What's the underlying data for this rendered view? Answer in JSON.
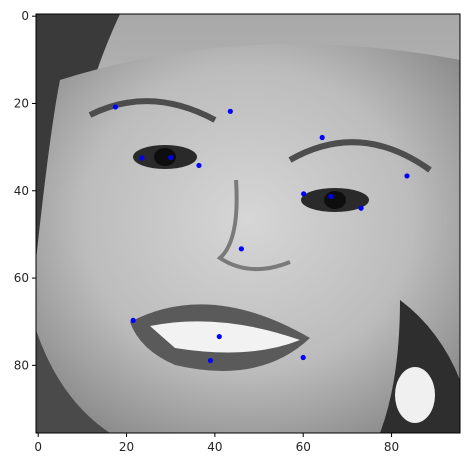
{
  "chart_data": {
    "type": "scatter",
    "background_image": "grayscale-face-photo",
    "xlim": [
      -0.5,
      95.5
    ],
    "ylim": [
      95.5,
      -0.5
    ],
    "y_inverted": true,
    "grid": false,
    "legend": "none",
    "x_ticks": [
      0,
      20,
      40,
      60,
      80
    ],
    "y_ticks": [
      0,
      20,
      40,
      60,
      80
    ],
    "title": "",
    "xlabel": "",
    "ylabel": "",
    "marker_color": "#0000ff",
    "series": [
      {
        "points": [
          {
            "x": 17.5,
            "y": 20.8
          },
          {
            "x": 43.5,
            "y": 21.8
          },
          {
            "x": 64.3,
            "y": 27.8
          },
          {
            "x": 23.5,
            "y": 32.5
          },
          {
            "x": 30.0,
            "y": 32.4
          },
          {
            "x": 36.4,
            "y": 34.2
          },
          {
            "x": 83.5,
            "y": 36.6
          },
          {
            "x": 60.1,
            "y": 40.7
          },
          {
            "x": 66.3,
            "y": 41.3
          },
          {
            "x": 73.1,
            "y": 44.0
          },
          {
            "x": 46.0,
            "y": 53.3
          },
          {
            "x": 21.5,
            "y": 69.7
          },
          {
            "x": 41.0,
            "y": 73.4
          },
          {
            "x": 60.0,
            "y": 78.2
          },
          {
            "x": 39.0,
            "y": 78.9
          }
        ]
      }
    ]
  }
}
